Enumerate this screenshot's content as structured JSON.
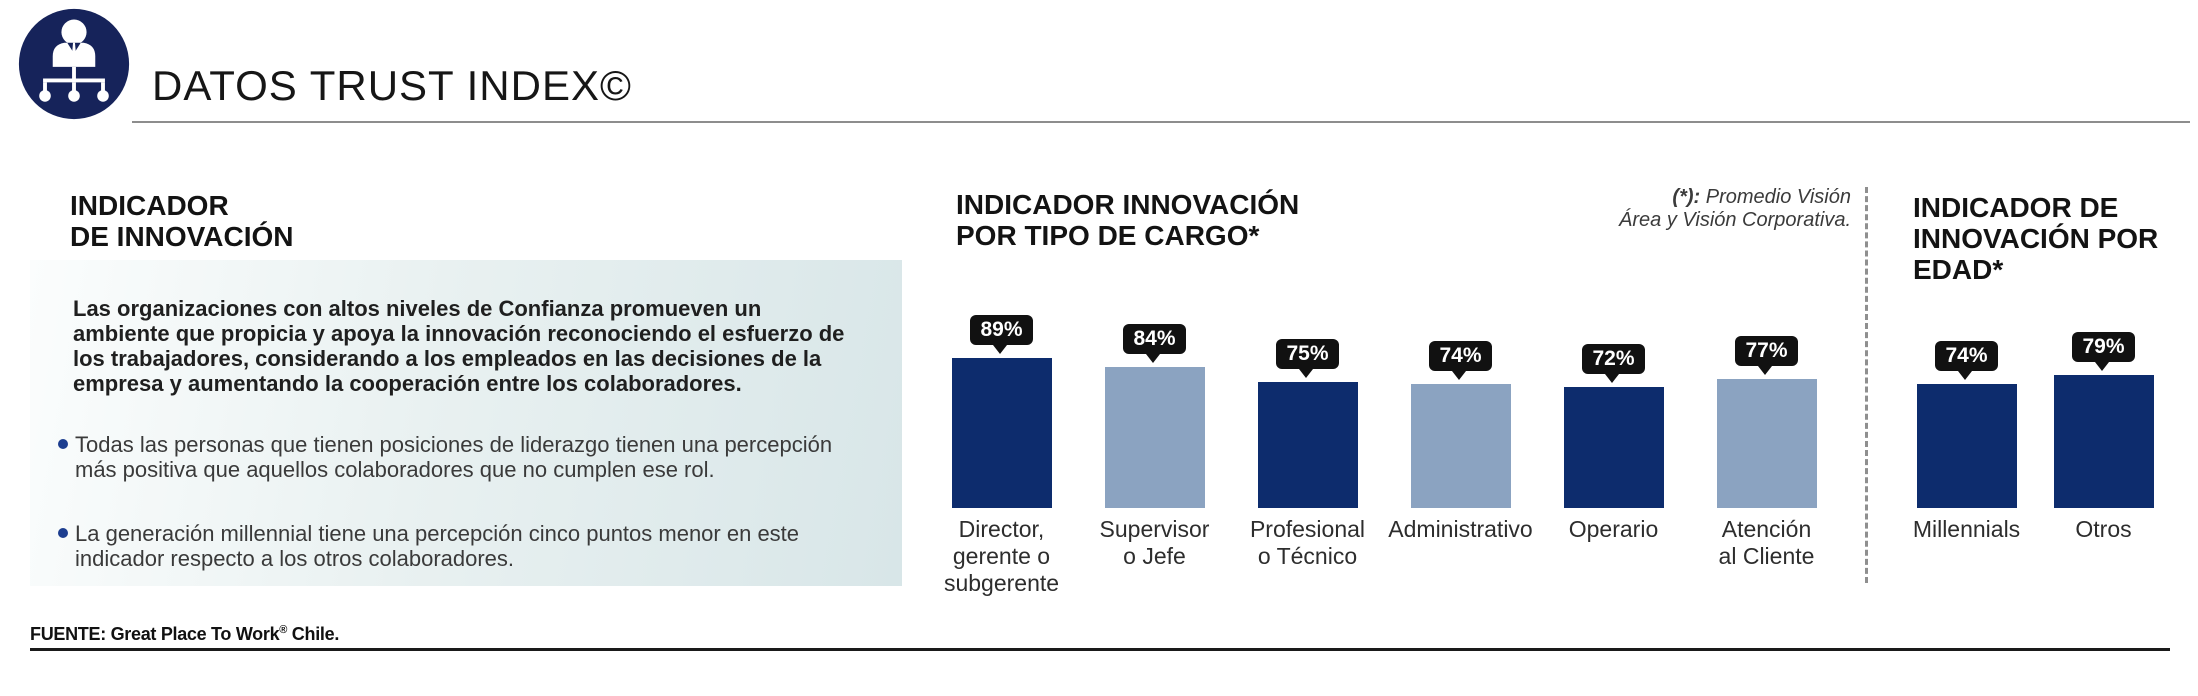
{
  "header": {
    "title": "DATOS TRUST INDEX©",
    "icon": "org-chart-person"
  },
  "left_panel": {
    "heading": "INDICADOR\nDE INNOVACIÓN",
    "paragraph": "Las organizaciones con altos niveles de Confianza promueven un\nambiente que propicia y apoya la innovación reconociendo el esfuerzo de\nlos trabajadores, considerando a los empleados en las decisiones de la\nempresa y aumentando la cooperación entre los colaboradores.",
    "bullets": [
      "Todas las personas que tienen posiciones de liderazgo tienen una percepción\nmás positiva que aquellos colaboradores que no cumplen ese rol.",
      "La generación millennial tiene una percepción cinco puntos menor en este\nindicador respecto a los otros colaboradores."
    ]
  },
  "footnote": {
    "marker": "(*):",
    "text": " Promedio Visión\nÁrea y Visión Corporativa."
  },
  "footer": {
    "prefix": "FUENTE: Great Place To Work",
    "registered": "®",
    "suffix": " Chile."
  },
  "colors": {
    "navy": "#0d2c6d",
    "light_blue": "#8ba3c1",
    "callout_bg": "#111111",
    "icon_navy": "#16235a",
    "panel_tint": "#d9e7e8"
  },
  "chart_data": [
    {
      "type": "bar",
      "title": "INDICADOR INNOVACIÓN\nPOR TIPO DE CARGO*",
      "categories": [
        "Director,\ngerente o\nsubgerente",
        "Supervisor\no Jefe",
        "Profesional\no Técnico",
        "Administrativo",
        "Operario",
        "Atención\nal Cliente"
      ],
      "values": [
        89,
        84,
        75,
        74,
        72,
        77
      ],
      "unit": "%",
      "bar_colors": [
        "#0d2c6d",
        "#8ba3c1",
        "#0d2c6d",
        "#8ba3c1",
        "#0d2c6d",
        "#8ba3c1"
      ],
      "ylim": [
        0,
        100
      ],
      "data_labels": "callout",
      "legend": "none",
      "grid": false
    },
    {
      "type": "bar",
      "title": "INDICADOR DE\nINNOVACIÓN POR\nEDAD*",
      "categories": [
        "Millennials",
        "Otros"
      ],
      "values": [
        74,
        79
      ],
      "unit": "%",
      "bar_colors": [
        "#0d2c6d",
        "#0d2c6d"
      ],
      "ylim": [
        0,
        100
      ],
      "data_labels": "callout",
      "legend": "none",
      "grid": false
    }
  ]
}
